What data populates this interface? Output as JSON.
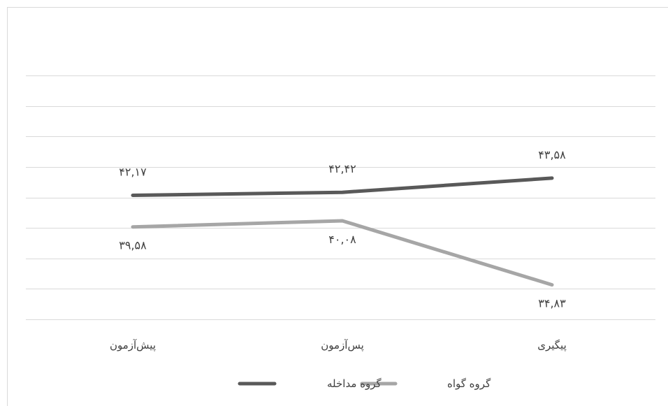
{
  "chart_data": {
    "type": "line",
    "title": "",
    "xlabel": "",
    "ylabel": "",
    "categories": [
      "پیش‌آزمون",
      "پس‌آزمون",
      "پیگیری"
    ],
    "ylim": [
      32,
      52
    ],
    "grid": true,
    "legend_position": "bottom",
    "series": [
      {
        "name": "گروه مداخله",
        "color": "#595959",
        "values": [
          42.17,
          42.42,
          43.58
        ],
        "labels": [
          "۴۲,۱۷",
          "۴۲,۴۲",
          "۴۳,۵۸"
        ]
      },
      {
        "name": "گروه گواه",
        "color": "#a6a6a6",
        "values": [
          39.58,
          40.08,
          34.83
        ],
        "labels": [
          "۳۹,۵۸",
          "۴۰,۰۸",
          "۳۴,۸۳"
        ]
      }
    ]
  }
}
